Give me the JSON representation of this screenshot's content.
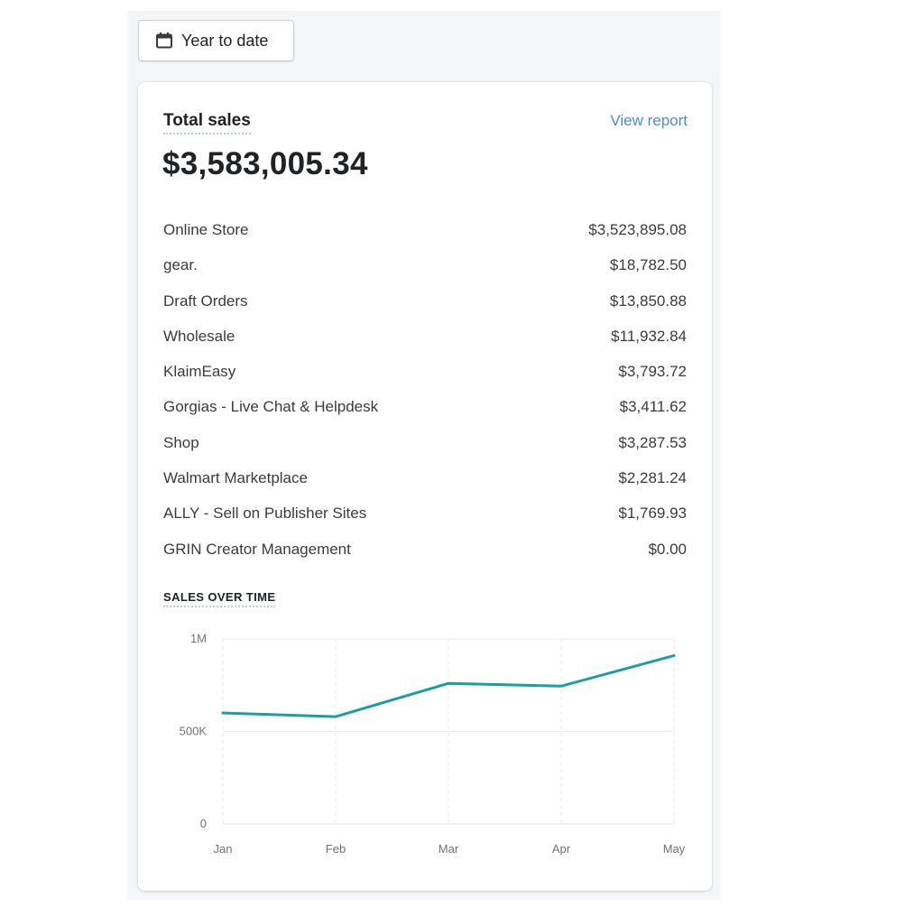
{
  "date_filter": {
    "label": "Year to date",
    "icon": "calendar-icon"
  },
  "card": {
    "title": "Total sales",
    "view_report_label": "View report",
    "total": "$3,583,005.34",
    "channels": [
      {
        "name": "Online Store",
        "amount": "$3,523,895.08"
      },
      {
        "name": "gear.",
        "amount": "$18,782.50"
      },
      {
        "name": "Draft Orders",
        "amount": "$13,850.88"
      },
      {
        "name": "Wholesale",
        "amount": "$11,932.84"
      },
      {
        "name": "KlaimEasy",
        "amount": "$3,793.72"
      },
      {
        "name": "Gorgias - Live Chat & Helpdesk",
        "amount": "$3,411.62"
      },
      {
        "name": "Shop",
        "amount": "$3,287.53"
      },
      {
        "name": "Walmart Marketplace",
        "amount": "$2,281.24"
      },
      {
        "name": "ALLY - Sell on Publisher Sites",
        "amount": "$1,769.93"
      },
      {
        "name": "GRIN Creator Management",
        "amount": "$0.00"
      }
    ],
    "sales_over_time_label": "SALES OVER TIME"
  },
  "colors": {
    "accent_link": "#4a8cd6",
    "series_line": "#1a9e9f"
  },
  "chart_data": {
    "type": "line",
    "title": "SALES OVER TIME",
    "categories": [
      "Jan",
      "Feb",
      "Mar",
      "Apr",
      "May"
    ],
    "series": [
      {
        "values": [
          600000,
          580000,
          760000,
          745000,
          910000
        ]
      }
    ],
    "y_ticks": [
      0,
      500000,
      1000000
    ],
    "y_tick_labels": [
      "0",
      "500K",
      "1M"
    ],
    "ylim": [
      0,
      1000000
    ],
    "grid": true
  }
}
